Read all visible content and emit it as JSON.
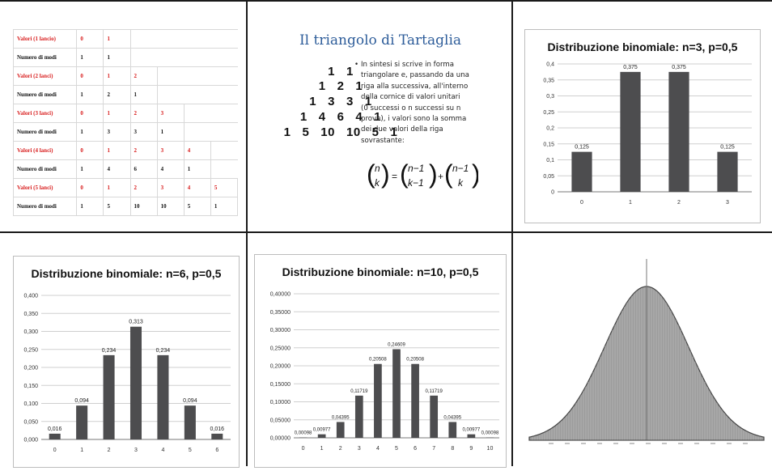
{
  "table": {
    "rows": [
      {
        "kind": "r",
        "label": "Valori (1 lancio)",
        "values": [
          "0",
          "1"
        ]
      },
      {
        "kind": "k",
        "label": "Numero di modi",
        "values": [
          "1",
          "1"
        ]
      },
      {
        "kind": "r",
        "label": "Valori (2 lanci)",
        "values": [
          "0",
          "1",
          "2"
        ]
      },
      {
        "kind": "k",
        "label": "Numero di modi",
        "values": [
          "1",
          "2",
          "1"
        ]
      },
      {
        "kind": "r",
        "label": "Valori (3 lanci)",
        "values": [
          "0",
          "1",
          "2",
          "3"
        ]
      },
      {
        "kind": "k",
        "label": "Numero di modi",
        "values": [
          "1",
          "3",
          "3",
          "1"
        ]
      },
      {
        "kind": "r",
        "label": "Valori (4 lanci)",
        "values": [
          "0",
          "1",
          "2",
          "3",
          "4"
        ]
      },
      {
        "kind": "k",
        "label": "Numero di modi",
        "values": [
          "1",
          "4",
          "6",
          "4",
          "1"
        ]
      },
      {
        "kind": "r",
        "label": "Valori (5 lanci)",
        "values": [
          "0",
          "1",
          "2",
          "3",
          "4",
          "5"
        ]
      },
      {
        "kind": "k",
        "label": "Numero di modi",
        "values": [
          "1",
          "5",
          "10",
          "10",
          "5",
          "1"
        ]
      }
    ]
  },
  "tartaglia": {
    "title": "Il triangolo di Tartaglia",
    "rows": [
      "1   1",
      "1   2   1",
      "1   3   3   1",
      "1   4   6   4   1",
      "1   5   10   10   5   1"
    ],
    "bullet": "•",
    "text_lines": [
      "In sintesi si scrive in forma",
      "triangolare e, passando da una",
      "riga alla successiva, all'interno",
      "della cornice di valori unitari",
      "(0 successi o n successi su n",
      "prove), i valori sono la somma",
      "dei due valori della riga",
      "sovrastante:"
    ],
    "formula": {
      "n": "n",
      "k": "k",
      "n1": "n−1",
      "k1": "k−1",
      "eq": "=",
      "plus": "+"
    }
  },
  "chart_data": [
    {
      "type": "bar",
      "title": "Distribuzione binomiale: n=3, p=0,5",
      "categories": [
        "0",
        "1",
        "2",
        "3"
      ],
      "values": [
        0.125,
        0.375,
        0.375,
        0.125
      ],
      "value_labels": [
        "0,125",
        "0,375",
        "0,375",
        "0,125"
      ],
      "y_ticks": [
        "0",
        "0,05",
        "0,1",
        "0,15",
        "0,2",
        "0,25",
        "0,3",
        "0,35",
        "0,4"
      ],
      "ylim": [
        0,
        0.4
      ],
      "xlabel": "",
      "ylabel": "",
      "grid": true,
      "bar_color": "#4d4d4f"
    },
    {
      "type": "bar",
      "title": "Distribuzione binomiale: n=6, p=0,5",
      "categories": [
        "0",
        "1",
        "2",
        "3",
        "4",
        "5",
        "6"
      ],
      "values": [
        0.016,
        0.094,
        0.234,
        0.313,
        0.234,
        0.094,
        0.016
      ],
      "value_labels": [
        "0,016",
        "0,094",
        "0,234",
        "0,313",
        "0,234",
        "0,094",
        "0,016"
      ],
      "y_ticks": [
        "0,000",
        "0,050",
        "0,100",
        "0,150",
        "0,200",
        "0,250",
        "0,300",
        "0,350",
        "0,400"
      ],
      "ylim": [
        0,
        0.4
      ],
      "xlabel": "",
      "ylabel": "",
      "grid": true,
      "bar_color": "#4d4d4f"
    },
    {
      "type": "bar",
      "title": "Distribuzione binomiale: n=10, p=0,5",
      "categories": [
        "0",
        "1",
        "2",
        "3",
        "4",
        "5",
        "6",
        "7",
        "8",
        "9",
        "10"
      ],
      "values": [
        0.00098,
        0.00977,
        0.04395,
        0.11719,
        0.20508,
        0.24609,
        0.20508,
        0.11719,
        0.04395,
        0.00977,
        0.00098
      ],
      "value_labels": [
        "0,00098",
        "0,00977",
        "0,04395",
        "0,11719",
        "0,20508",
        "0,24609",
        "0,20508",
        "0,11719",
        "0,04395",
        "0,00977",
        "0,00098"
      ],
      "y_ticks": [
        "0,00000",
        "0,05000",
        "0,10000",
        "0,15000",
        "0,20000",
        "0,25000",
        "0,30000",
        "0,35000",
        "0,40000"
      ],
      "ylim": [
        0,
        0.4
      ],
      "xlabel": "",
      "ylabel": "",
      "grid": true,
      "bar_color": "#4d4d4f"
    },
    {
      "type": "area",
      "title": "",
      "description_shape": "normal bell curve (dense histogram, unlabeled)",
      "fill_color": "#9c9c9c"
    }
  ]
}
